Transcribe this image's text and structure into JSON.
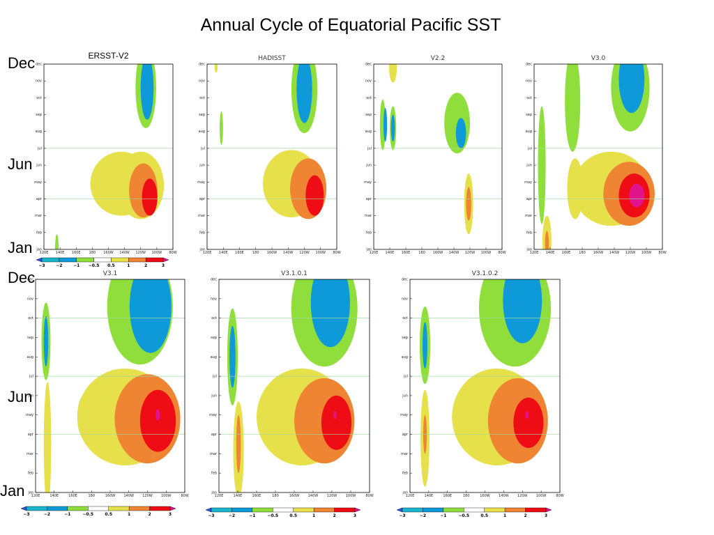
{
  "title": "Annual Cycle of Equatorial Pacific SST",
  "row_labels": {
    "top": {
      "dec": "Dec",
      "jun": "Jun",
      "jan": "Jan"
    },
    "bottom": {
      "dec": "Dec",
      "jun": "Jun",
      "jan": "Jan"
    }
  },
  "colors": {
    "-3": "#3050e0",
    "-2": "#19b5cc",
    "-1": "#0e9ad8",
    "-0.5": "#8fde3c",
    "0.5": "#ffffff",
    "1": "#e6e14a",
    "2": "#ef8533",
    "3": "#ee0d14",
    "3+": "#e0138c",
    "gridline": "#9fd89f"
  },
  "chart_data": [
    {
      "type": "heatmap",
      "title": "ERSST-V2",
      "x_ticks": [
        "120E",
        "140E",
        "160E",
        "180",
        "160W",
        "140W",
        "120W",
        "100W",
        "80W"
      ],
      "y_ticks": [
        "jan",
        "feb",
        "mar",
        "apr",
        "may",
        "jun",
        "jul",
        "aug",
        "sep",
        "oct",
        "nov",
        "dec"
      ],
      "blobs": [
        {
          "x": -10,
          "y": 0,
          "rx": 1.4,
          "ry": 0.9,
          "level": -0.5
        },
        {
          "x": 12,
          "y": 1.5,
          "rx": 5.0,
          "ry": 0.9,
          "level": 0.5
        },
        {
          "x": 40,
          "y": 3.9,
          "rx": 24,
          "ry": 1.9,
          "level": 1
        },
        {
          "x": 55,
          "y": 3.8,
          "rx": 18,
          "ry": 2.0,
          "level": 1
        },
        {
          "x": 57,
          "y": 3.5,
          "rx": 11,
          "ry": 1.6,
          "level": 2
        },
        {
          "x": 62,
          "y": 3.1,
          "rx": 6,
          "ry": 1.1,
          "level": 3
        },
        {
          "x": 59,
          "y": 9.6,
          "rx": 8,
          "ry": 2.4,
          "level": -0.5
        },
        {
          "x": 60,
          "y": 9.6,
          "rx": 5,
          "ry": 1.9,
          "level": -1
        }
      ]
    },
    {
      "type": "heatmap",
      "title": "HADISST",
      "x_ticks": [
        "120E",
        "140E",
        "160E",
        "180",
        "160W",
        "140W",
        "120W",
        "100W",
        "80W"
      ],
      "y_ticks": [
        "jan",
        "feb",
        "mar",
        "apr",
        "may",
        "jun",
        "jul",
        "aug",
        "sep",
        "oct",
        "nov",
        "dec"
      ],
      "blobs": [
        {
          "x": -9,
          "y": 7.2,
          "rx": 1.3,
          "ry": 1.0,
          "level": -0.5
        },
        {
          "x": -13,
          "y": 10.8,
          "rx": 1.2,
          "ry": 0.3,
          "level": 1
        },
        {
          "x": 45,
          "y": 3.9,
          "rx": 22,
          "ry": 2.0,
          "level": 1
        },
        {
          "x": 58,
          "y": 3.6,
          "rx": 14,
          "ry": 1.8,
          "level": 2
        },
        {
          "x": 63,
          "y": 3.2,
          "rx": 7,
          "ry": 1.2,
          "level": 3
        },
        {
          "x": 55,
          "y": 9.5,
          "rx": 10,
          "ry": 2.6,
          "level": -0.5
        },
        {
          "x": 55,
          "y": 9.5,
          "rx": 6,
          "ry": 2.0,
          "level": -1
        }
      ]
    },
    {
      "type": "heatmap",
      "title": "V2.2",
      "x_ticks": [
        "120E",
        "140E",
        "160E",
        "180",
        "160W",
        "140W",
        "120W",
        "100W",
        "80W"
      ],
      "y_ticks": [
        "jan",
        "feb",
        "mar",
        "apr",
        "may",
        "jun",
        "jul",
        "aug",
        "sep",
        "oct",
        "nov",
        "dec"
      ],
      "blobs": [
        {
          "x": -5,
          "y": 10.8,
          "rx": 3,
          "ry": 0.9,
          "level": 1
        },
        {
          "x": -13,
          "y": 7.4,
          "rx": 2.2,
          "ry": 1.5,
          "level": -0.5
        },
        {
          "x": -11,
          "y": 7.4,
          "rx": 1.4,
          "ry": 1.0,
          "level": -1
        },
        {
          "x": -5,
          "y": 7.2,
          "rx": 2.5,
          "ry": 1.3,
          "level": -0.5
        },
        {
          "x": -5,
          "y": 7.2,
          "rx": 1.5,
          "ry": 0.8,
          "level": -1
        },
        {
          "x": 45,
          "y": 7.5,
          "rx": 10,
          "ry": 1.8,
          "level": -0.5
        },
        {
          "x": 48,
          "y": 6.9,
          "rx": 4,
          "ry": 0.9,
          "level": -1
        },
        {
          "x": 54,
          "y": 2.7,
          "rx": 3.5,
          "ry": 1.8,
          "level": 1
        },
        {
          "x": 54,
          "y": 2.7,
          "rx": 2,
          "ry": 1.0,
          "level": 2
        }
      ]
    },
    {
      "type": "heatmap",
      "title": "V3.0",
      "x_ticks": [
        "120E",
        "140E",
        "160E",
        "180",
        "160W",
        "140W",
        "120W",
        "100W",
        "80W"
      ],
      "y_ticks": [
        "jan",
        "feb",
        "mar",
        "apr",
        "may",
        "jun",
        "jul",
        "aug",
        "sep",
        "oct",
        "nov",
        "dec"
      ],
      "blobs": [
        {
          "x": 12,
          "y": 3.6,
          "rx": 6.2,
          "ry": 1.8,
          "level": 1
        },
        {
          "x": 10,
          "y": 8.8,
          "rx": 6,
          "ry": 3.0,
          "level": -0.5
        },
        {
          "x": -14,
          "y": 5.0,
          "rx": 3,
          "ry": 3.5,
          "level": -0.5
        },
        {
          "x": -10,
          "y": 0.5,
          "rx": 3.5,
          "ry": 1.5,
          "level": 1
        },
        {
          "x": -10,
          "y": 0.3,
          "rx": 1.5,
          "ry": 0.8,
          "level": 2
        },
        {
          "x": 40,
          "y": 3.6,
          "rx": 30,
          "ry": 2.2,
          "level": 1
        },
        {
          "x": 54,
          "y": 3.3,
          "rx": 20,
          "ry": 1.9,
          "level": 2
        },
        {
          "x": 58,
          "y": 3.2,
          "rx": 12,
          "ry": 1.3,
          "level": 3
        },
        {
          "x": 60,
          "y": 3.2,
          "rx": 6,
          "ry": 0.7,
          "level": "3+"
        },
        {
          "x": 55,
          "y": 9.6,
          "rx": 15,
          "ry": 2.6,
          "level": -0.5
        },
        {
          "x": 56,
          "y": 10.1,
          "rx": 10,
          "ry": 2.0,
          "level": -1
        }
      ]
    },
    {
      "type": "heatmap",
      "title": "V3.1",
      "x_ticks": [
        "120E",
        "140E",
        "160E",
        "180",
        "160W",
        "140W",
        "120W",
        "100W",
        "80W"
      ],
      "y_ticks": [
        "jan",
        "feb",
        "mar",
        "apr",
        "may",
        "jun",
        "jul",
        "aug",
        "sep",
        "oct",
        "nov",
        "dec"
      ],
      "blobs": [
        {
          "x": -12,
          "y": 2.5,
          "rx": 2.5,
          "ry": 3.2,
          "level": 1
        },
        {
          "x": -13,
          "y": 7.8,
          "rx": 3,
          "ry": 2.0,
          "level": -0.5
        },
        {
          "x": -13,
          "y": 7.8,
          "rx": 1.5,
          "ry": 1.3,
          "level": -1
        },
        {
          "x": 14,
          "y": 3.9,
          "rx": 6,
          "ry": 1.2,
          "level": -0.5
        },
        {
          "x": 40,
          "y": 3.9,
          "rx": 32,
          "ry": 2.5,
          "level": 1
        },
        {
          "x": 55,
          "y": 3.8,
          "rx": 22,
          "ry": 2.3,
          "level": 2
        },
        {
          "x": 62,
          "y": 3.7,
          "rx": 12,
          "ry": 1.6,
          "level": 3
        },
        {
          "x": 62,
          "y": 4.0,
          "rx": 1.5,
          "ry": 0.3,
          "level": "3+"
        },
        {
          "x": 50,
          "y": 9.6,
          "rx": 22,
          "ry": 3.0,
          "level": -0.5
        },
        {
          "x": 57,
          "y": 9.6,
          "rx": 14,
          "ry": 2.4,
          "level": -1
        }
      ]
    },
    {
      "type": "heatmap",
      "title": "V3.1.0.1",
      "x_ticks": [
        "120E",
        "140E",
        "160E",
        "180",
        "160W",
        "140W",
        "120W",
        "100W",
        "80W"
      ],
      "y_ticks": [
        "jan",
        "feb",
        "mar",
        "apr",
        "may",
        "jun",
        "jul",
        "aug",
        "sep",
        "oct",
        "nov",
        "dec"
      ],
      "blobs": [
        {
          "x": -7,
          "y": 2.2,
          "rx": 3.5,
          "ry": 2.5,
          "level": 1
        },
        {
          "x": -7,
          "y": 2.5,
          "rx": 1.5,
          "ry": 1.5,
          "level": 2
        },
        {
          "x": -11,
          "y": 7.0,
          "rx": 3.5,
          "ry": 2.5,
          "level": -0.5
        },
        {
          "x": -11,
          "y": 7.0,
          "rx": 2.0,
          "ry": 1.6,
          "level": -1
        },
        {
          "x": 35,
          "y": 3.9,
          "rx": 30,
          "ry": 2.5,
          "level": 1
        },
        {
          "x": 50,
          "y": 3.7,
          "rx": 20,
          "ry": 2.2,
          "level": 2
        },
        {
          "x": 58,
          "y": 3.6,
          "rx": 10,
          "ry": 1.4,
          "level": 3
        },
        {
          "x": 57,
          "y": 4.0,
          "rx": 1.0,
          "ry": 0.2,
          "level": "3+"
        },
        {
          "x": 50,
          "y": 9.5,
          "rx": 22,
          "ry": 3.0,
          "level": -0.5
        },
        {
          "x": 54,
          "y": 9.8,
          "rx": 13,
          "ry": 2.3,
          "level": -1
        }
      ]
    },
    {
      "type": "heatmap",
      "title": "V3.1.0.2",
      "x_ticks": [
        "120E",
        "140E",
        "160E",
        "180",
        "160W",
        "140W",
        "120W",
        "100W",
        "80W"
      ],
      "y_ticks": [
        "jan",
        "feb",
        "mar",
        "apr",
        "may",
        "jun",
        "jul",
        "aug",
        "sep",
        "oct",
        "nov",
        "dec"
      ],
      "blobs": [
        {
          "x": -10,
          "y": 2.8,
          "rx": 3.0,
          "ry": 2.5,
          "level": 1
        },
        {
          "x": -10,
          "y": 3.0,
          "rx": 1.2,
          "ry": 1.0,
          "level": 2
        },
        {
          "x": -10,
          "y": 7.6,
          "rx": 3.5,
          "ry": 2.0,
          "level": -0.5
        },
        {
          "x": -10,
          "y": 7.6,
          "rx": 1.6,
          "ry": 1.2,
          "level": -1
        },
        {
          "x": 38,
          "y": 3.9,
          "rx": 30,
          "ry": 2.5,
          "level": 1
        },
        {
          "x": 52,
          "y": 3.7,
          "rx": 20,
          "ry": 2.2,
          "level": 2
        },
        {
          "x": 59,
          "y": 3.6,
          "rx": 10,
          "ry": 1.3,
          "level": 3
        },
        {
          "x": 58,
          "y": 4.0,
          "rx": 1.2,
          "ry": 0.2,
          "level": "3+"
        },
        {
          "x": 50,
          "y": 9.5,
          "rx": 24,
          "ry": 3.0,
          "level": -0.5
        },
        {
          "x": 55,
          "y": 9.9,
          "rx": 13,
          "ry": 2.2,
          "level": -1
        }
      ]
    }
  ],
  "colorbar": {
    "labels": [
      "−3",
      "−2",
      "−1",
      "−0.5",
      "0.5",
      "1",
      "2",
      "3"
    ],
    "segments": [
      -3,
      -2,
      -1,
      -0.5,
      0.5,
      1,
      2,
      3
    ]
  }
}
